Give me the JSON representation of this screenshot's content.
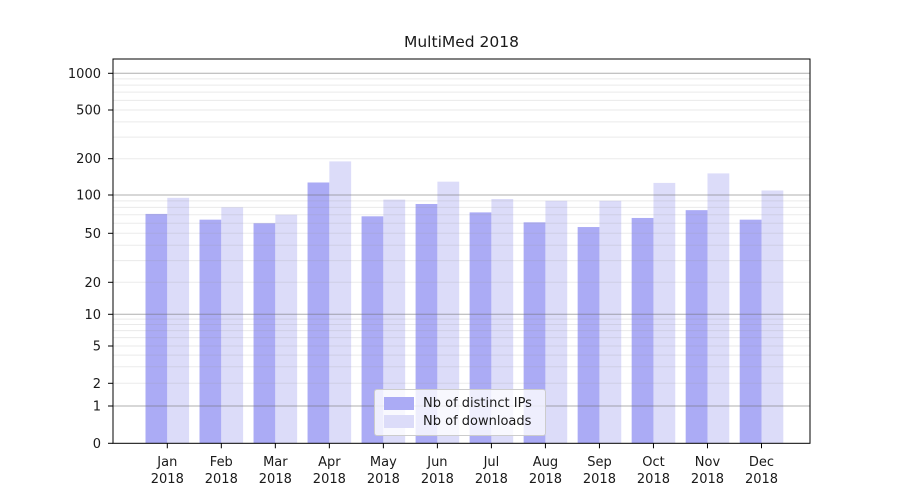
{
  "chart_data": {
    "type": "bar",
    "title": "MultiMed 2018",
    "categories": [
      "Jan",
      "Feb",
      "Mar",
      "Apr",
      "May",
      "Jun",
      "Jul",
      "Aug",
      "Sep",
      "Oct",
      "Nov",
      "Dec"
    ],
    "category_year": "2018",
    "series": [
      {
        "name": "Nb of distinct IPs",
        "color": "#ababf5",
        "values": [
          71,
          64,
          60,
          127,
          68,
          85,
          73,
          61,
          56,
          66,
          76,
          64
        ]
      },
      {
        "name": "Nb of downloads",
        "color": "#dcdcf9",
        "values": [
          95,
          80,
          70,
          190,
          92,
          129,
          93,
          90,
          90,
          126,
          151,
          109
        ]
      }
    ],
    "yscale": "symlog",
    "yticks": [
      0,
      1,
      2,
      5,
      10,
      20,
      50,
      100,
      200,
      500,
      1000
    ],
    "ylim": [
      0,
      1000
    ],
    "grid": true,
    "legend_position": "lower center",
    "colors": {
      "major_gridline": "#b4b4b4",
      "minor_gridline": "#ececec",
      "axis": "#000000",
      "text": "#1a1a1a"
    }
  }
}
